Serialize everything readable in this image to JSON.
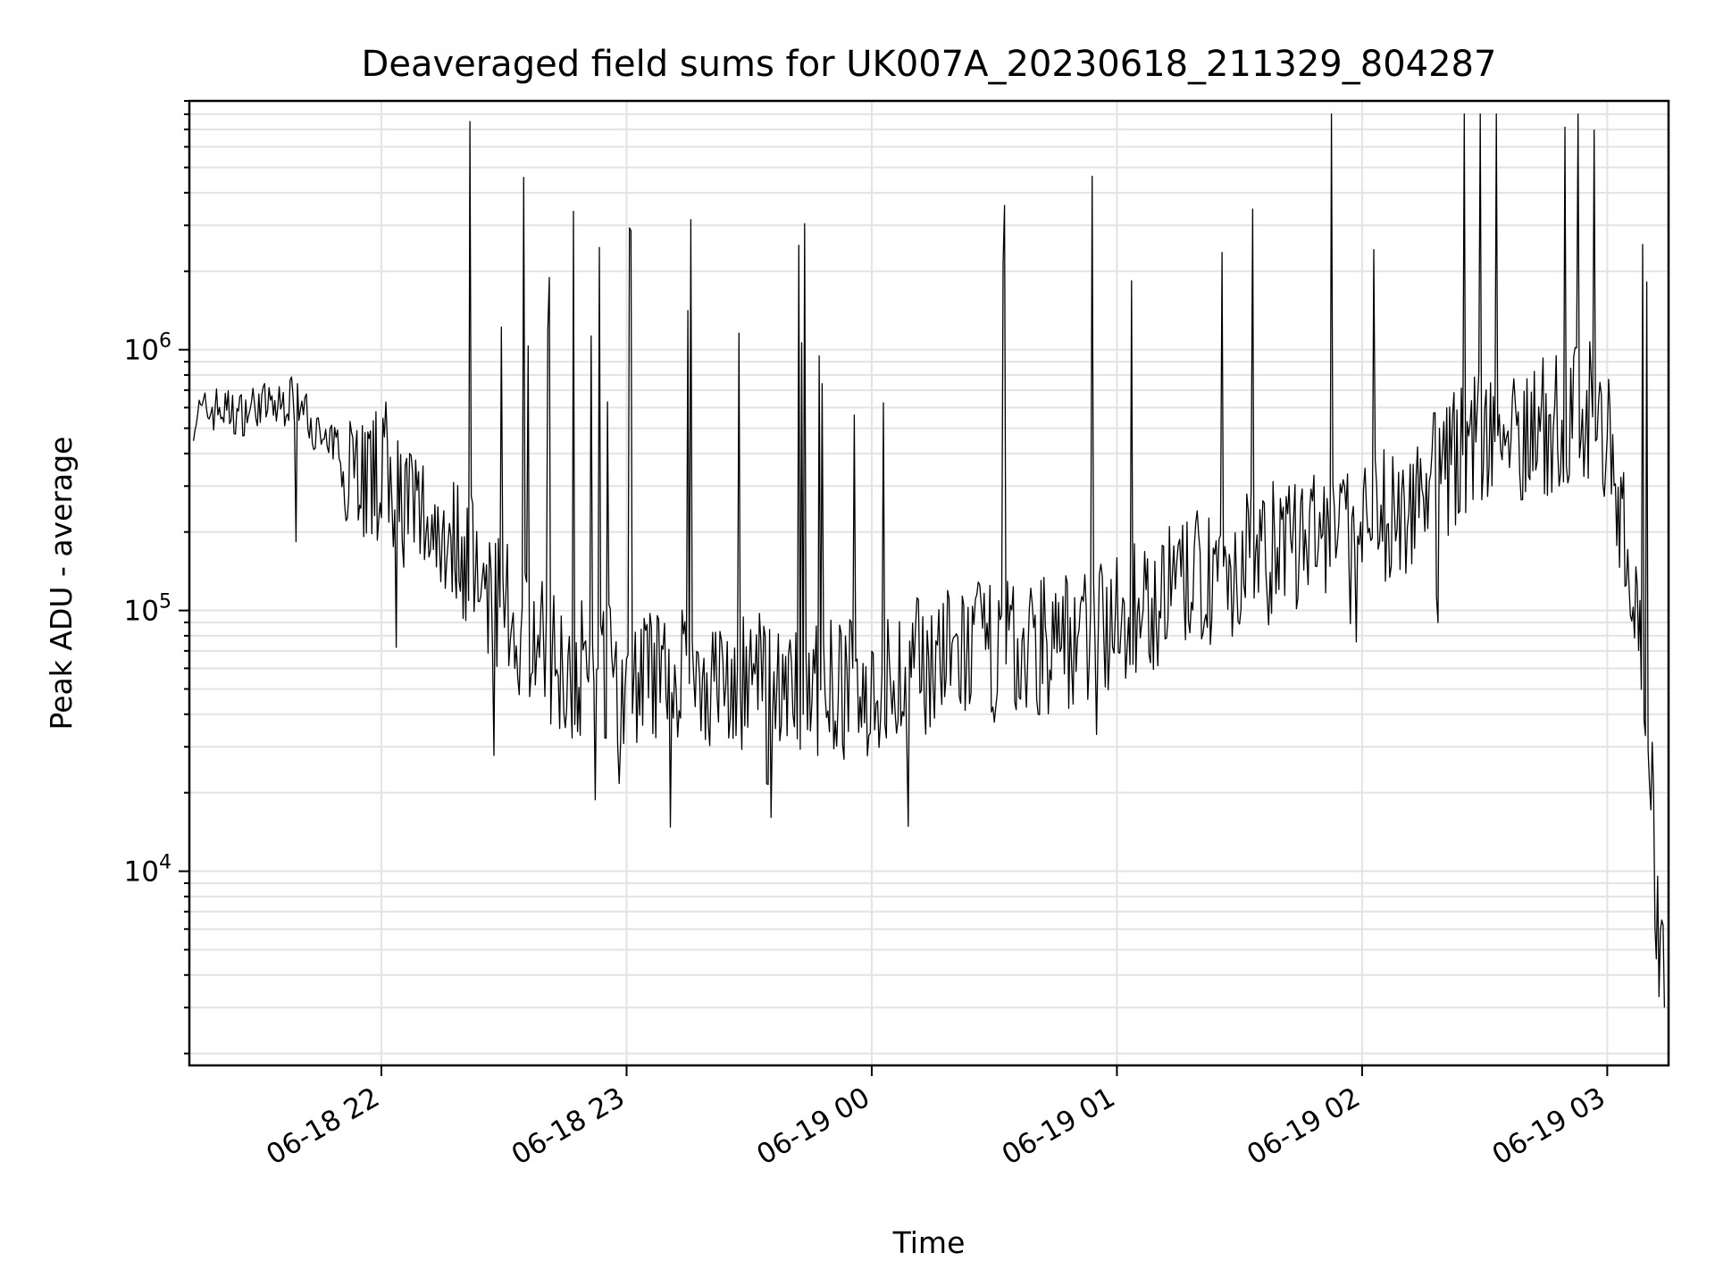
{
  "chart_data": {
    "type": "line",
    "title": "Deaveraged field sums for UK007A_20230618_211329_804287",
    "xlabel": "Time",
    "ylabel": "Peak ADU - average",
    "yscale": "log",
    "ylim": [
      1800,
      9000000
    ],
    "xlim": [
      "2023-06-18 21:13",
      "2023-06-19 03:15"
    ],
    "grid": true,
    "color": "#000000",
    "x_ticks": [
      {
        "t": "2023-06-18 22:00",
        "label": "06-18 22"
      },
      {
        "t": "2023-06-18 23:00",
        "label": "06-18 23"
      },
      {
        "t": "2023-06-19 00:00",
        "label": "06-19 00"
      },
      {
        "t": "2023-06-19 01:00",
        "label": "06-19 01"
      },
      {
        "t": "2023-06-19 02:00",
        "label": "06-19 02"
      },
      {
        "t": "2023-06-19 03:00",
        "label": "06-19 03"
      }
    ],
    "y_ticks": [
      {
        "value": 10000,
        "base": "10",
        "exp": "4"
      },
      {
        "value": 100000,
        "base": "10",
        "exp": "5"
      },
      {
        "value": 1000000,
        "base": "10",
        "exp": "6"
      }
    ],
    "series": [
      {
        "x": [
          "2023-06-18 21:14",
          "2023-06-18 21:20",
          "2023-06-18 21:25",
          "2023-06-18 21:30",
          "2023-06-18 21:35",
          "2023-06-18 21:38",
          "2023-06-18 21:42",
          "2023-06-18 21:46",
          "2023-06-18 21:50",
          "2023-06-18 21:53",
          "2023-06-18 21:55",
          "2023-06-18 21:58",
          "2023-06-18 22:00",
          "2023-06-18 22:04",
          "2023-06-18 22:08",
          "2023-06-18 22:12",
          "2023-06-18 22:16",
          "2023-06-18 22:19",
          "2023-06-18 22:22",
          "2023-06-18 22:25",
          "2023-06-18 22:29",
          "2023-06-18 22:33",
          "2023-06-18 22:37",
          "2023-06-18 22:40",
          "2023-06-18 22:44",
          "2023-06-18 22:47",
          "2023-06-18 22:50",
          "2023-06-18 22:53",
          "2023-06-18 22:56",
          "2023-06-18 23:00",
          "2023-06-18 23:05",
          "2023-06-18 23:10",
          "2023-06-18 23:15",
          "2023-06-18 23:20",
          "2023-06-18 23:25",
          "2023-06-18 23:30",
          "2023-06-18 23:35",
          "2023-06-18 23:40",
          "2023-06-18 23:45",
          "2023-06-18 23:50",
          "2023-06-18 23:55",
          "2023-06-19 00:00",
          "2023-06-19 00:05",
          "2023-06-19 00:10",
          "2023-06-19 00:15",
          "2023-06-19 00:20",
          "2023-06-19 00:25",
          "2023-06-19 00:30",
          "2023-06-19 00:35",
          "2023-06-19 00:40",
          "2023-06-19 00:45",
          "2023-06-19 00:50",
          "2023-06-19 00:55",
          "2023-06-19 01:00",
          "2023-06-19 01:05",
          "2023-06-19 01:10",
          "2023-06-19 01:15",
          "2023-06-19 01:20",
          "2023-06-19 01:25",
          "2023-06-19 01:30",
          "2023-06-19 01:35",
          "2023-06-19 01:40",
          "2023-06-19 01:45",
          "2023-06-19 01:50",
          "2023-06-19 01:55",
          "2023-06-19 02:00",
          "2023-06-19 02:05",
          "2023-06-19 02:10",
          "2023-06-19 02:15",
          "2023-06-19 02:20",
          "2023-06-19 02:25",
          "2023-06-19 02:30",
          "2023-06-19 02:35",
          "2023-06-19 02:40",
          "2023-06-19 02:45",
          "2023-06-19 02:50",
          "2023-06-19 02:55",
          "2023-06-19 03:00",
          "2023-06-19 03:03",
          "2023-06-19 03:06",
          "2023-06-19 03:08",
          "2023-06-19 03:10",
          "2023-06-19 03:12",
          "2023-06-19 03:14"
        ],
        "y": [
          550000,
          600000,
          560000,
          620000,
          600000,
          650000,
          560000,
          430000,
          420000,
          410000,
          350000,
          300000,
          380000,
          280000,
          240000,
          220000,
          200000,
          180000,
          150000,
          130000,
          100000,
          90000,
          80000,
          70000,
          65000,
          60000,
          60000,
          60000,
          58000,
          55000,
          55000,
          55000,
          54000,
          53000,
          52000,
          52000,
          53000,
          52000,
          51000,
          50000,
          50000,
          50000,
          52000,
          60000,
          65000,
          65000,
          70000,
          70000,
          70000,
          75000,
          75000,
          80000,
          85000,
          90000,
          100000,
          110000,
          120000,
          130000,
          140000,
          150000,
          160000,
          170000,
          180000,
          190000,
          200000,
          210000,
          220000,
          250000,
          300000,
          350000,
          420000,
          450000,
          450000,
          500000,
          500000,
          550000,
          600000,
          500000,
          250000,
          120000,
          80000,
          50000,
          8000,
          3000
        ]
      }
    ]
  }
}
